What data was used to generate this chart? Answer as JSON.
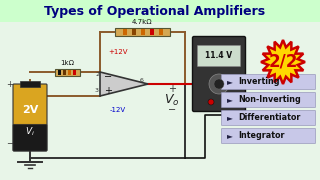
{
  "title": "Types of Operational Amplifiers",
  "title_color": "#000080",
  "title_bg": "#ccffcc",
  "main_bg": "#e8f5e8",
  "circuit_bg": "#e8f5e8",
  "right_bg": "#e8f5e8",
  "badge_text": "2/2",
  "badge_fill": "#FFD700",
  "badge_stroke": "#cc0000",
  "list_items": [
    "Inverting",
    "Non-Inverting",
    "Differentiator",
    "Integrator"
  ],
  "list_bg": "#c8c8e8",
  "list_arrow_color": "#222244",
  "resistor_label_top": "4.7kΩ",
  "resistor_label_left": "1kΩ",
  "voltage_plus": "+12V",
  "voltage_minus": "-12V",
  "battery_label": "2V",
  "output_label": "V₀",
  "meter_value": "11.4 V",
  "wire_brown": "#8B5A2B",
  "wire_red": "#cc0000",
  "wire_dark": "#333333",
  "op_amp_fill": "#cccccc",
  "op_amp_stroke": "#333333",
  "battery_gold": "#DAA520",
  "battery_dark": "#1a1a1a",
  "meter_body": "#444444",
  "meter_screen_bg": "#ccddcc",
  "meter_screen_text": "#111111"
}
